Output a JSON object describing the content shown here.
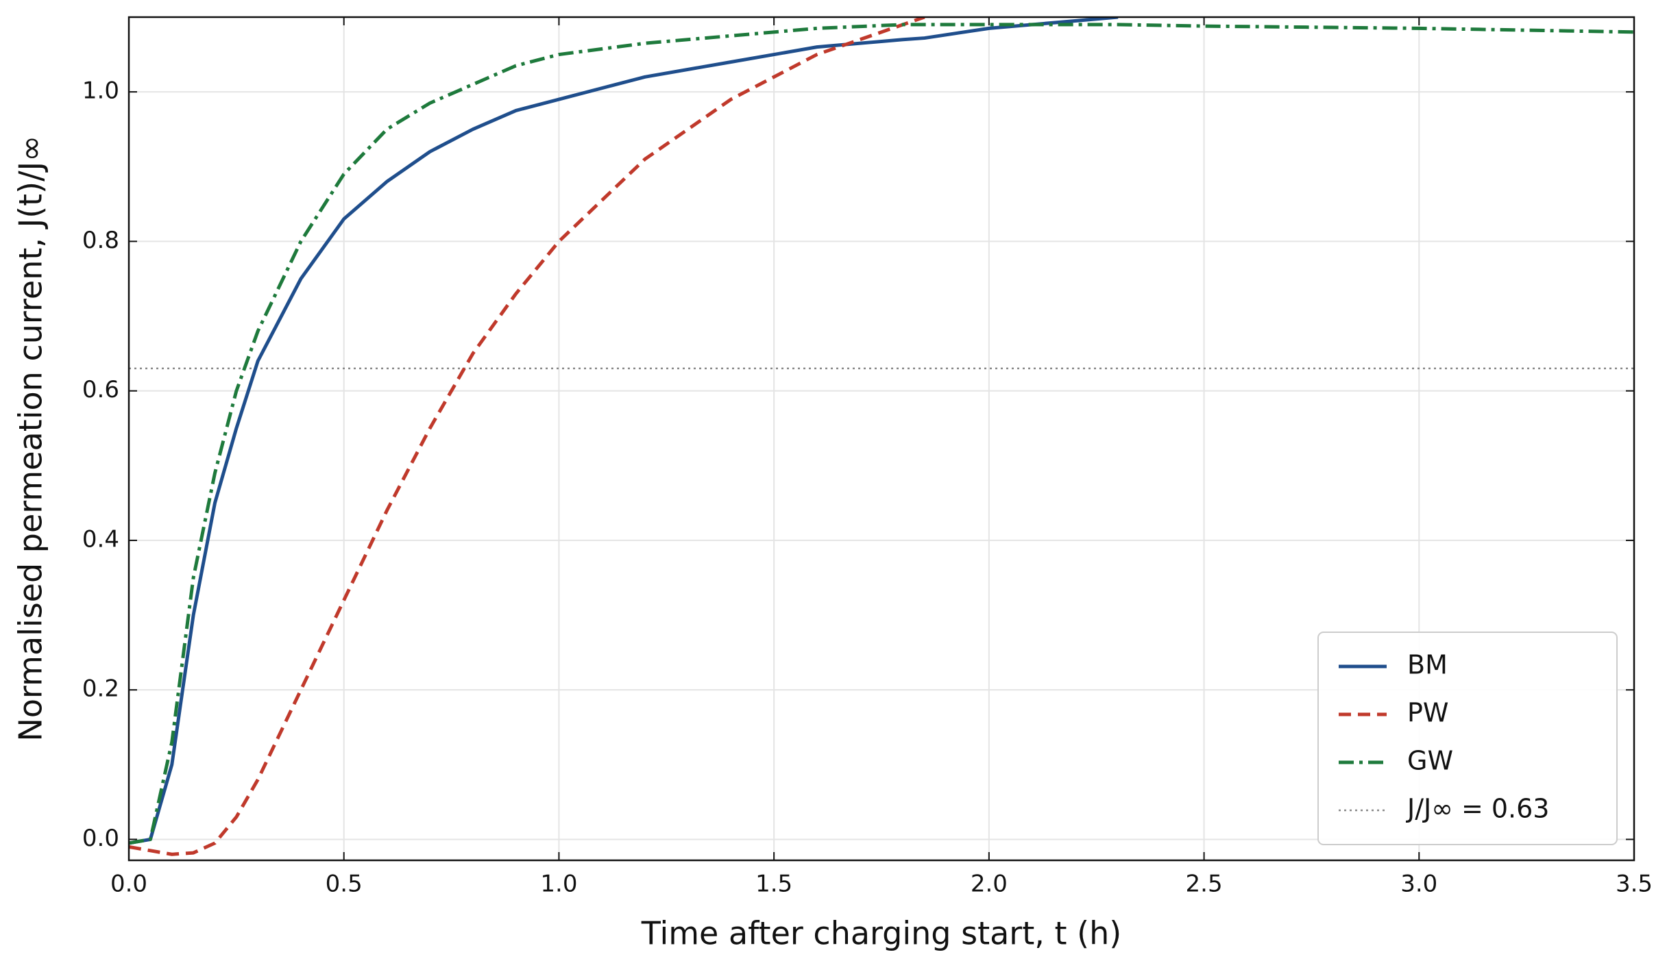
{
  "chart_data": {
    "type": "line",
    "xlabel": "Time after charging start,  t (h)",
    "ylabel": "Normalised permeation current,  J(t)/J∞",
    "x": [
      0,
      0.05,
      0.1,
      0.15,
      0.2,
      0.25,
      0.3,
      0.4,
      0.5,
      0.6,
      0.7,
      0.8,
      0.9,
      1.0,
      1.2,
      1.4,
      1.6,
      1.8,
      1.85,
      2.0,
      2.2,
      2.3,
      2.5,
      3.0,
      3.5
    ],
    "series": [
      {
        "name": "BM",
        "color": "#1f4e8c",
        "dash": "solid",
        "values": [
          -0.005,
          0.0,
          0.1,
          0.3,
          0.45,
          0.55,
          0.64,
          0.75,
          0.83,
          0.88,
          0.92,
          0.95,
          0.975,
          0.99,
          1.02,
          1.04,
          1.06,
          1.07,
          1.072,
          1.085,
          1.095,
          1.1,
          null,
          null,
          null
        ]
      },
      {
        "name": "PW",
        "color": "#c0392b",
        "dash": "dashed",
        "values": [
          -0.01,
          -0.015,
          -0.02,
          -0.018,
          -0.005,
          0.03,
          0.08,
          0.2,
          0.32,
          0.44,
          0.55,
          0.65,
          0.73,
          0.8,
          0.91,
          0.99,
          1.05,
          1.09,
          1.1,
          null,
          null,
          null,
          null,
          null,
          null
        ]
      },
      {
        "name": "GW",
        "color": "#1e7a3c",
        "dash": "dashdot",
        "values": [
          -0.005,
          0.0,
          0.13,
          0.35,
          0.49,
          0.6,
          0.68,
          0.8,
          0.89,
          0.95,
          0.985,
          1.01,
          1.035,
          1.05,
          1.065,
          1.075,
          1.085,
          1.09,
          1.09,
          1.09,
          1.09,
          1.09,
          1.088,
          1.085,
          1.08
        ]
      }
    ],
    "hlines": [
      {
        "name": "J/J∞ = 0.63",
        "value": 0.63,
        "color": "#888888"
      }
    ],
    "xlim": [
      0,
      3.5
    ],
    "xticks": [
      {
        "value": 0,
        "label": "0.0"
      },
      0.5,
      {
        "value": 1,
        "label": "1.0"
      },
      1.5,
      {
        "value": 2,
        "label": "2.0"
      },
      2.5,
      {
        "value": 3,
        "label": "3.0"
      },
      3.5
    ],
    "ylim": [
      -0.028,
      1.1
    ],
    "yticks": [
      {
        "value": 0,
        "label": "0.0"
      },
      0.2,
      0.4,
      0.6,
      0.8,
      {
        "value": 1,
        "label": "1.0"
      }
    ],
    "grid": true,
    "legend": "lower right"
  }
}
